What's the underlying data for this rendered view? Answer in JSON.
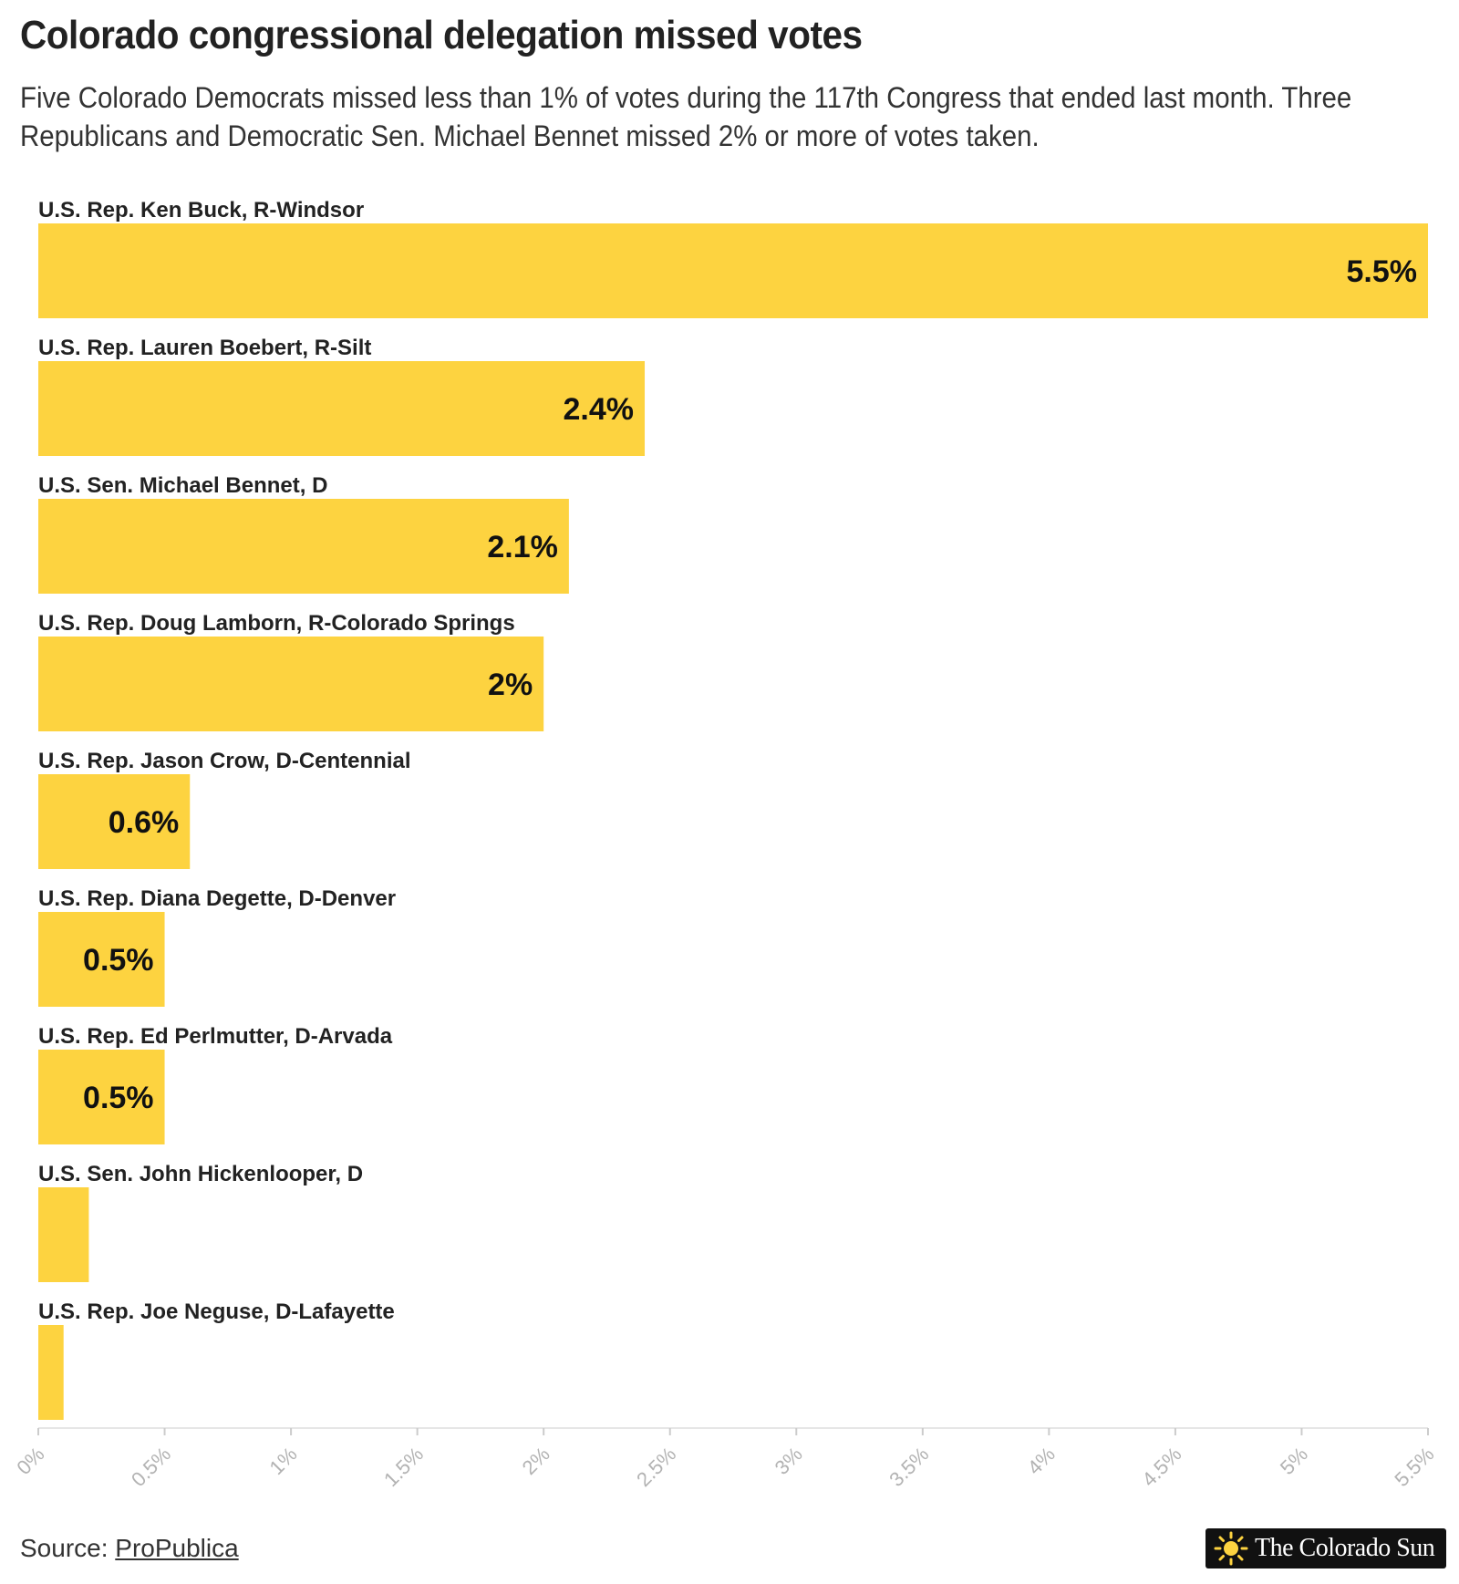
{
  "chart_data": {
    "type": "bar",
    "orientation": "horizontal",
    "title": "Colorado congressional delegation missed votes",
    "subtitle": "Five Colorado Democrats missed less than 1% of votes during the 117th Congress that ended last month. Three Republicans and Democratic Sen. Michael Bennet missed 2% or more of votes taken.",
    "categories": [
      "U.S. Rep. Ken Buck, R-Windsor",
      "U.S. Rep. Lauren Boebert, R-Silt",
      "U.S. Sen. Michael Bennet, D",
      "U.S. Rep. Doug Lamborn, R-Colorado Springs",
      "U.S. Rep. Jason Crow, D-Centennial",
      "U.S. Rep. Diana Degette, D-Denver",
      "U.S. Rep. Ed Perlmutter, D-Arvada",
      "U.S. Sen. John Hickenlooper, D",
      "U.S. Rep. Joe Neguse, D-Lafayette"
    ],
    "values": [
      5.5,
      2.4,
      2.1,
      2.0,
      0.6,
      0.5,
      0.5,
      0.2,
      0.1
    ],
    "value_labels": [
      "5.5%",
      "2.4%",
      "2.1%",
      "2%",
      "0.6%",
      "0.5%",
      "0.5%",
      "",
      ""
    ],
    "xlim": [
      0,
      5.5
    ],
    "xticks": [
      0,
      0.5,
      1,
      1.5,
      2,
      2.5,
      3,
      3.5,
      4,
      4.5,
      5,
      5.5
    ],
    "xtick_labels": [
      "0%",
      "0.5%",
      "1%",
      "1.5%",
      "2%",
      "2.5%",
      "3%",
      "3.5%",
      "4%",
      "4.5%",
      "5%",
      "5.5%"
    ],
    "bar_color": "#fdd340",
    "grid": false,
    "legend": "none"
  },
  "footer": {
    "source_prefix": "Source: ",
    "source_link": "ProPublica",
    "logo_text": "The Colorado Sun"
  }
}
